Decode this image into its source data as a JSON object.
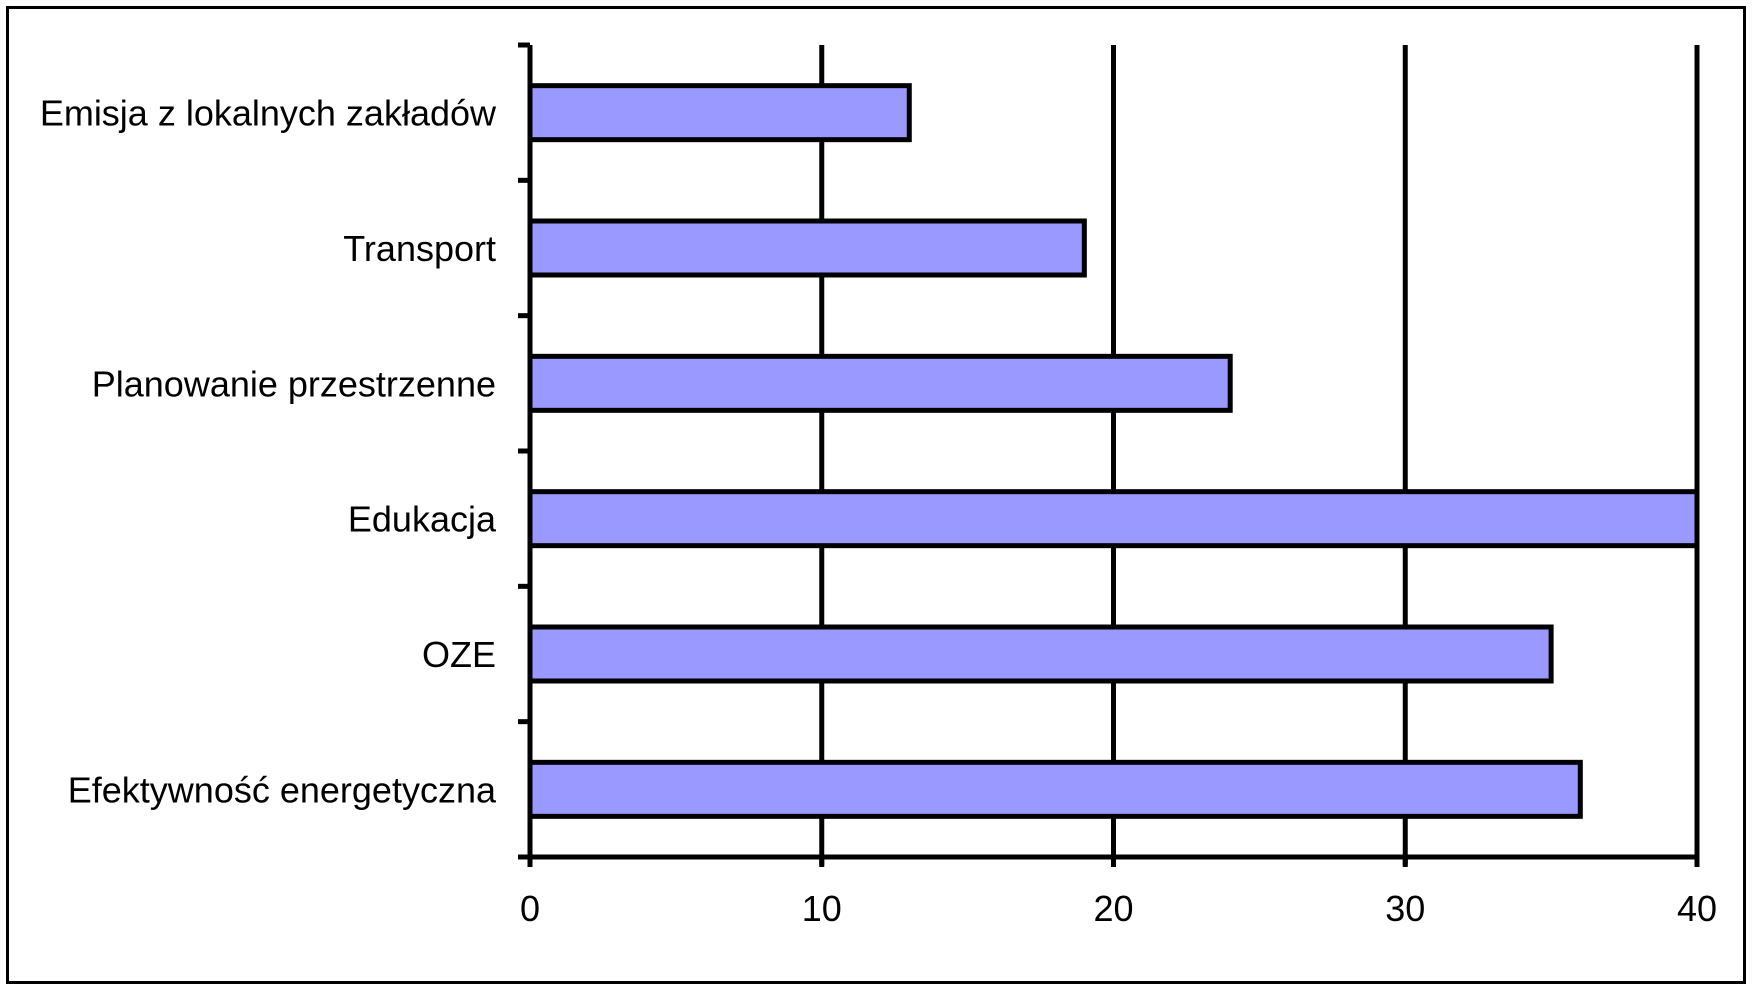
{
  "chart_data": {
    "type": "bar",
    "orientation": "horizontal",
    "categories": [
      "Emisja z lokalnych zakładów",
      "Transport",
      "Planowanie przestrzenne",
      "Edukacja",
      "OZE",
      "Efektywność energetyczna"
    ],
    "values": [
      13,
      19,
      24,
      40,
      35,
      36
    ],
    "xlim": [
      0,
      40
    ],
    "xticks": [
      0,
      10,
      20,
      30,
      40
    ],
    "xtick_labels": [
      "0",
      "10",
      "20",
      "30",
      "40"
    ],
    "grid": "vertical",
    "bar_color": "#9999ff",
    "bar_edge_color": "#000000",
    "title": "",
    "xlabel": "",
    "ylabel": ""
  }
}
